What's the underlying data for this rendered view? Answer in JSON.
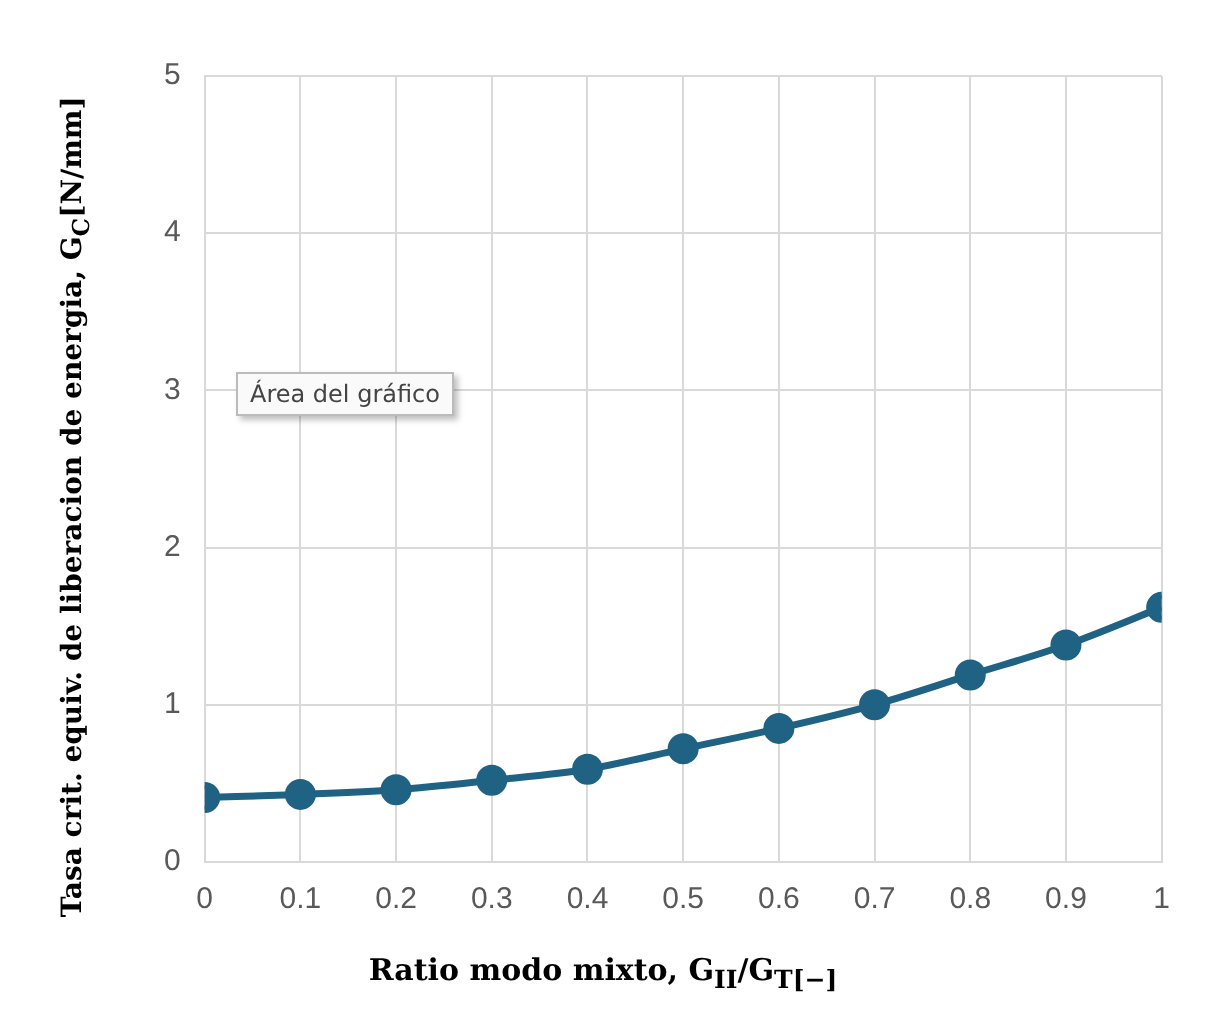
{
  "chart_data": {
    "type": "line",
    "xlabel": "Ratio modo mixto, G$_{II}$/G$_{T[−]}$",
    "ylabel": "Tasa crit. equiv. de liberacion de energia, G$_{C}$[N/mm]",
    "annotations": [
      "Área del gráfico"
    ],
    "x": [
      0,
      0.1,
      0.2,
      0.3,
      0.4,
      0.5,
      0.6,
      0.7,
      0.8,
      0.9,
      1
    ],
    "series": [
      {
        "color": "#1f6284",
        "values": [
          0.41,
          0.43,
          0.46,
          0.52,
          0.59,
          0.72,
          0.85,
          1.0,
          1.19,
          1.38,
          1.62
        ]
      }
    ],
    "xlim": [
      0,
      1
    ],
    "xticks": [
      0,
      0.1,
      0.2,
      0.3,
      0.4,
      0.5,
      0.6,
      0.7,
      0.8,
      0.9,
      1
    ],
    "ylim": [
      0,
      5
    ],
    "yticks": [
      0,
      1,
      2,
      3,
      4,
      5
    ],
    "grid": true,
    "legend": false,
    "marker": "circle",
    "line_style": "solid"
  }
}
